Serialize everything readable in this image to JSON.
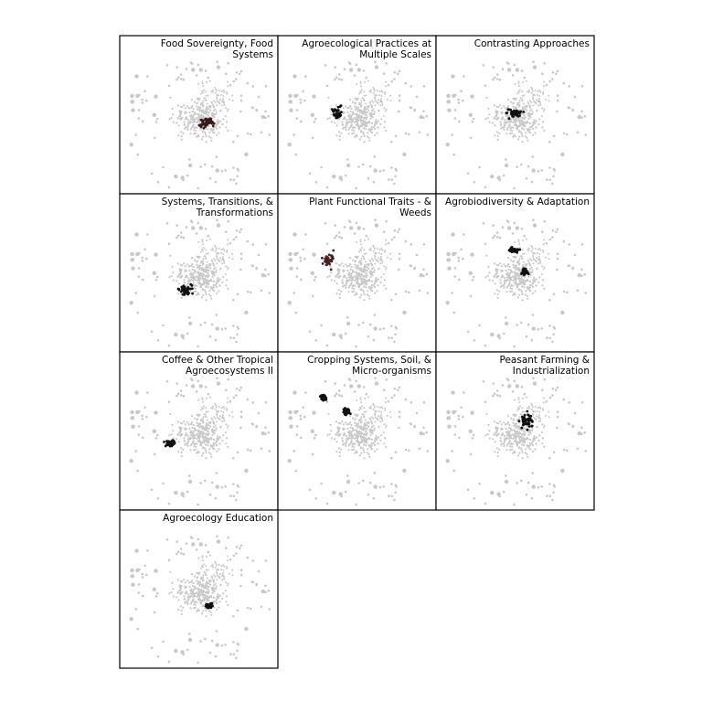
{
  "panels": [
    {
      "title_lines": [
        "Food Sovereignty, Food",
        "Systems"
      ]
    },
    {
      "title_lines": [
        "Agroecological Practices at",
        "Multiple Scales"
      ]
    },
    {
      "title_lines": [
        "Contrasting Approaches"
      ]
    },
    {
      "title_lines": [
        "Systems, Transitions, &",
        "Transformations"
      ]
    },
    {
      "title_lines": [
        "Plant Functional Traits - &",
        "Weeds"
      ]
    },
    {
      "title_lines": [
        "Agrobiodiversity & Adaptation"
      ]
    },
    {
      "title_lines": [
        "Coffee & Other Tropical",
        "Agroecosystems II"
      ]
    },
    {
      "title_lines": [
        "Cropping Systems, Soil, &",
        "Micro-organisms"
      ]
    },
    {
      "title_lines": [
        "Peasant Farming &",
        "Industrialization"
      ]
    },
    {
      "title_lines": [
        "Agroecology Education"
      ]
    }
  ]
}
